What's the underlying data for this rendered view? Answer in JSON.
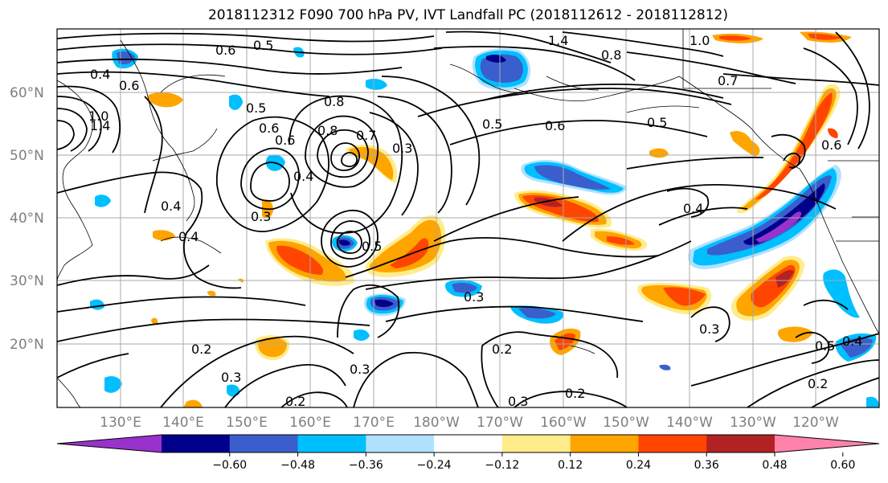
{
  "title": "2018112312 F090 700 hPa PV, IVT Landfall PC (2018112612 - 2018112812)",
  "lat_labels": [
    "60°N",
    "50°N",
    "40°N",
    "30°N",
    "20°N"
  ],
  "lon_labels": [
    "130°E",
    "140°E",
    "150°E",
    "160°E",
    "170°E",
    "180°W",
    "170°W",
    "160°W",
    "150°W",
    "140°W",
    "130°W",
    "120°W"
  ],
  "colorbar": {
    "ticks": [
      "−0.60",
      "−0.48",
      "−0.36",
      "−0.24",
      "−0.12",
      "0.12",
      "0.24",
      "0.36",
      "0.48",
      "0.60"
    ],
    "colors": [
      "#9932CC",
      "#00008B",
      "#3A5FCD",
      "#00BFFF",
      "#B0E2FF",
      "#FFFFFF",
      "#FFEC8B",
      "#FFA500",
      "#FF4500",
      "#B22222",
      "#FF82AB"
    ]
  },
  "contour_labels": [
    "0.5",
    "0.6",
    "0.4",
    "0.6",
    "1.0",
    "1.4",
    "0.5",
    "0.6",
    "0.8",
    "0.7",
    "0.3",
    "0.5",
    "0.6",
    "0.8",
    "0.5",
    "0.4",
    "0.4",
    "0.3",
    "0.4",
    "0.6",
    "0.3",
    "0.2",
    "0.3",
    "0.3",
    "0.2",
    "0.3",
    "0.2",
    "0.5",
    "0.4",
    "0.2",
    "1.4",
    "0.8",
    "0.7",
    "1.0",
    "0.5",
    "0.6",
    "0.2",
    "0.3",
    "0.4"
  ]
}
